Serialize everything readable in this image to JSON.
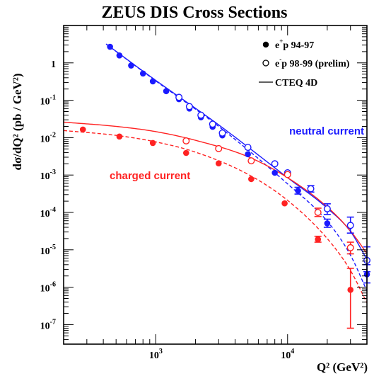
{
  "chart_data": {
    "type": "scatter",
    "title": "ZEUS DIS Cross Sections",
    "xlabel": "Q² (GeV²)",
    "ylabel": "dσ/dQ² (pb / GeV²)",
    "xscale": "log",
    "yscale": "log",
    "xlim": [
      200,
      40000
    ],
    "ylim": [
      3e-08,
      10
    ],
    "x_ticks": [
      {
        "value": 1000,
        "label": "10³"
      },
      {
        "value": 10000,
        "label": "10⁴"
      }
    ],
    "y_ticks": [
      {
        "value": 1,
        "label": "1"
      },
      {
        "value": 0.1,
        "label": "10⁻¹"
      },
      {
        "value": 0.01,
        "label": "10⁻²"
      },
      {
        "value": 0.001,
        "label": "10⁻³"
      },
      {
        "value": 0.0001,
        "label": "10⁻⁴"
      },
      {
        "value": 1e-05,
        "label": "10⁻⁵"
      },
      {
        "value": 1e-06,
        "label": "10⁻⁶"
      },
      {
        "value": 1e-07,
        "label": "10⁻⁷"
      }
    ],
    "legend": {
      "placement": "top-right",
      "entries": [
        {
          "marker": "filled",
          "label_main": "e",
          "label_sup": "+",
          "label_rest": "p 94-97"
        },
        {
          "marker": "open",
          "label_main": "e",
          "label_sup": "-",
          "label_rest": "p 98-99 (prelim)"
        },
        {
          "marker": "line",
          "label_main": "CTEQ 4D",
          "label_sup": "",
          "label_rest": ""
        }
      ]
    },
    "annotations": [
      {
        "text": "neutral current",
        "color": "#1a1aff"
      },
      {
        "text": "charged current",
        "color": "#ff2222"
      }
    ],
    "colors": {
      "nc": "#1a1aff",
      "cc": "#ff2222"
    },
    "series": [
      {
        "process": "NC",
        "beam": "e+p 94-97",
        "marker": "filled",
        "color": "#1a1aff",
        "x": [
          450,
          530,
          650,
          800,
          950,
          1200,
          1500,
          1800,
          2200,
          2700,
          3200,
          5000,
          8000,
          12000,
          20000,
          40000
        ],
        "y": [
          2.7,
          1.58,
          0.85,
          0.52,
          0.32,
          0.175,
          0.107,
          0.06,
          0.035,
          0.0195,
          0.0115,
          0.0036,
          0.00115,
          0.00038,
          5.1e-05,
          2.2e-06
        ],
        "err_hi": [
          null,
          null,
          null,
          null,
          null,
          null,
          null,
          null,
          null,
          null,
          null,
          null,
          null,
          0.00047,
          6.6e-05,
          4e-06
        ],
        "err_lo": [
          null,
          null,
          null,
          null,
          null,
          null,
          null,
          null,
          null,
          null,
          null,
          null,
          null,
          0.00031,
          4e-05,
          1.3e-06
        ]
      },
      {
        "process": "NC",
        "beam": "e-p 98-99 (prelim)",
        "marker": "open",
        "color": "#1a1aff",
        "x": [
          1500,
          1800,
          2200,
          2700,
          3200,
          5000,
          8000,
          10000,
          15000,
          20000,
          30000,
          40000
        ],
        "y": [
          0.12,
          0.068,
          0.04,
          0.023,
          0.0133,
          0.0055,
          0.002,
          0.00115,
          0.00043,
          0.000125,
          4.5e-05,
          5.2e-06
        ],
        "err_hi": [
          null,
          null,
          null,
          null,
          null,
          null,
          null,
          null,
          0.00052,
          0.00017,
          7.5e-05,
          1.2e-05
        ],
        "err_lo": [
          null,
          null,
          null,
          null,
          null,
          null,
          null,
          null,
          0.00035,
          8.8e-05,
          2.8e-05,
          2.6e-06
        ]
      },
      {
        "process": "CC",
        "beam": "e+p 94-97",
        "marker": "filled",
        "color": "#ff2222",
        "x": [
          280,
          530,
          950,
          1700,
          3000,
          5300,
          9500,
          17000,
          30000
        ],
        "y": [
          0.0165,
          0.0107,
          0.0072,
          0.0039,
          0.00205,
          0.00078,
          0.000175,
          1.9e-05,
          8.5e-07
        ],
        "err_hi": [
          null,
          null,
          null,
          null,
          null,
          null,
          null,
          2.3e-05,
          3.2e-06
        ],
        "err_lo": [
          null,
          null,
          null,
          null,
          null,
          null,
          null,
          1.6e-05,
          8e-08
        ]
      },
      {
        "process": "CC",
        "beam": "e-p 98-99 (prelim)",
        "marker": "open",
        "color": "#ff2222",
        "x": [
          1700,
          3000,
          5300,
          10000,
          17000,
          30000
        ],
        "y": [
          0.0082,
          0.0051,
          0.0024,
          0.00103,
          0.0001,
          1.14e-05
        ],
        "err_hi": [
          null,
          null,
          null,
          null,
          0.00013,
          1.6e-05
        ],
        "err_lo": [
          null,
          null,
          null,
          null,
          7.8e-05,
          7.8e-06
        ]
      }
    ],
    "theory_curves": [
      {
        "name": "CTEQ 4D",
        "process": "NC",
        "beam": "e+p",
        "color": "#1a1aff",
        "style": "dashed",
        "x": [
          420,
          1000,
          3000,
          10000,
          20000,
          30000,
          40000
        ],
        "y": [
          3.2,
          0.33,
          0.02,
          0.00058,
          5.8e-05,
          7.2e-06,
          8e-07
        ]
      },
      {
        "name": "CTEQ 4D",
        "process": "NC",
        "beam": "e-p",
        "color": "#1a1aff",
        "style": "solid",
        "x": [
          420,
          1000,
          3000,
          10000,
          20000,
          30000,
          40000
        ],
        "y": [
          3.2,
          0.34,
          0.022,
          0.00085,
          0.00013,
          3.1e-05,
          5.5e-06
        ]
      },
      {
        "name": "CTEQ 4D",
        "process": "CC",
        "beam": "e+p",
        "color": "#ff2222",
        "style": "dashed",
        "x": [
          200,
          500,
          1000,
          2000,
          5000,
          10000,
          20000,
          30000,
          40000
        ],
        "y": [
          0.0155,
          0.0115,
          0.0077,
          0.0041,
          0.00105,
          0.00021,
          2e-05,
          2.8e-06,
          3.8e-07
        ]
      },
      {
        "name": "CTEQ 4D",
        "process": "CC",
        "beam": "e-p",
        "color": "#ff2222",
        "style": "solid",
        "x": [
          200,
          500,
          1000,
          2000,
          5000,
          10000,
          20000,
          30000,
          40000
        ],
        "y": [
          0.026,
          0.02,
          0.0145,
          0.0085,
          0.0031,
          0.00085,
          0.00014,
          3.2e-05,
          8e-06
        ]
      }
    ]
  }
}
